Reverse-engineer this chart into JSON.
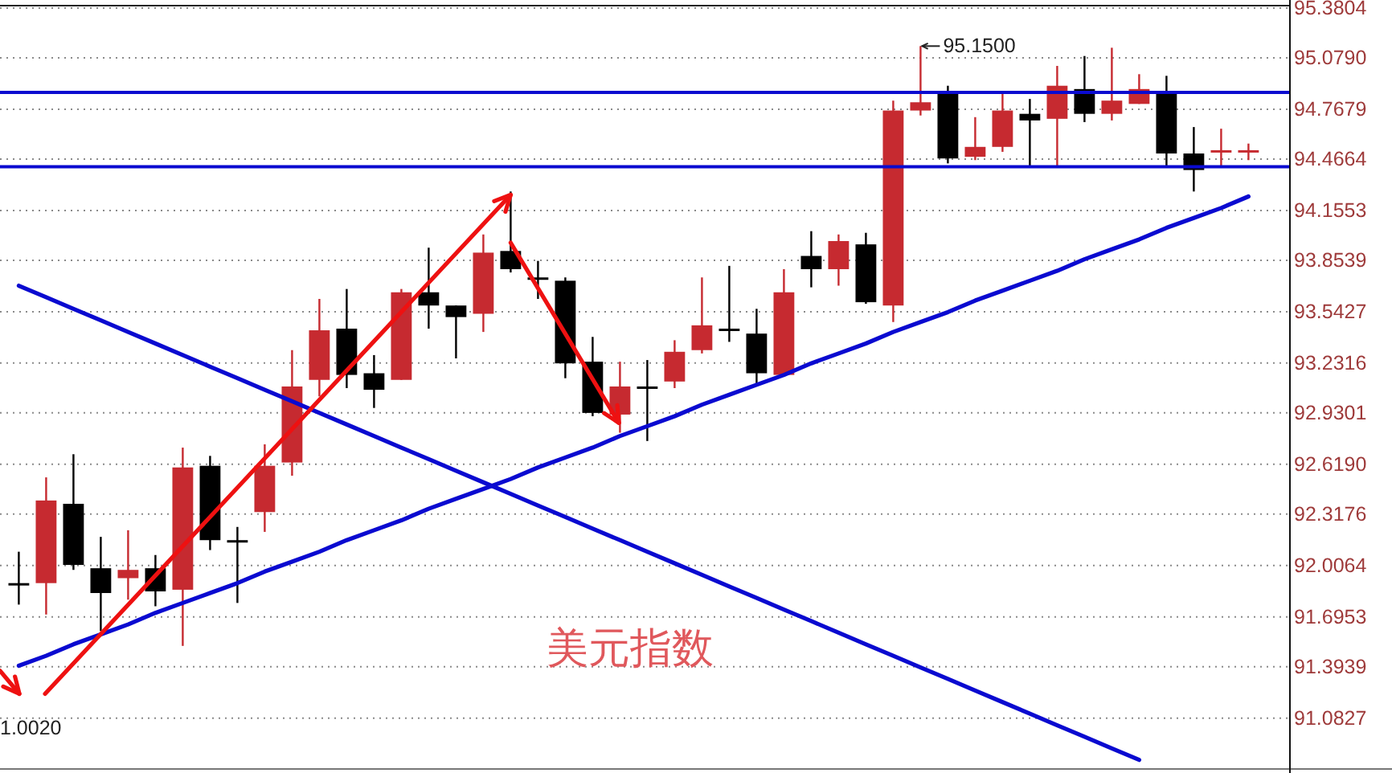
{
  "chart_data": {
    "type": "candlestick",
    "title": "美元指数",
    "categories": [
      null,
      null,
      null,
      null,
      null,
      null,
      null,
      null,
      null,
      null,
      null,
      null,
      null,
      null,
      null,
      null,
      null,
      null,
      null,
      null,
      null,
      null,
      null,
      null,
      null,
      null,
      null,
      null,
      null,
      null,
      null,
      null,
      null,
      null,
      null,
      null,
      null,
      null,
      null,
      null,
      null,
      null,
      null,
      null,
      null,
      null
    ],
    "ohlc": [
      [
        91.9,
        92.09,
        91.77,
        91.89
      ],
      [
        91.9,
        92.54,
        91.71,
        92.4
      ],
      [
        92.38,
        92.68,
        91.98,
        92.01
      ],
      [
        91.99,
        92.18,
        91.61,
        91.84
      ],
      [
        91.93,
        92.22,
        91.8,
        91.98
      ],
      [
        91.99,
        92.07,
        91.76,
        91.85
      ],
      [
        91.86,
        92.72,
        91.52,
        92.6
      ],
      [
        92.61,
        92.67,
        92.1,
        92.16
      ],
      [
        92.16,
        92.24,
        91.78,
        92.15
      ],
      [
        92.33,
        92.74,
        92.21,
        92.61
      ],
      [
        92.63,
        93.31,
        92.55,
        93.09
      ],
      [
        93.13,
        93.62,
        93.03,
        93.43
      ],
      [
        93.44,
        93.68,
        93.08,
        93.16
      ],
      [
        93.17,
        93.28,
        92.96,
        93.07
      ],
      [
        93.13,
        93.68,
        93.13,
        93.66
      ],
      [
        93.66,
        93.93,
        93.44,
        93.58
      ],
      [
        93.58,
        93.58,
        93.26,
        93.51
      ],
      [
        93.53,
        94.01,
        93.42,
        93.9
      ],
      [
        93.91,
        94.27,
        93.78,
        93.8
      ],
      [
        93.75,
        93.85,
        93.62,
        93.74
      ],
      [
        93.73,
        93.75,
        93.14,
        93.23
      ],
      [
        93.24,
        93.39,
        92.91,
        92.93
      ],
      [
        92.92,
        93.24,
        92.81,
        93.09
      ],
      [
        93.09,
        93.25,
        92.76,
        93.08
      ],
      [
        93.12,
        93.37,
        93.08,
        93.3
      ],
      [
        93.31,
        93.75,
        93.29,
        93.46
      ],
      [
        93.44,
        93.82,
        93.36,
        93.43
      ],
      [
        93.41,
        93.56,
        93.1,
        93.17
      ],
      [
        93.16,
        93.8,
        93.16,
        93.66
      ],
      [
        93.88,
        94.03,
        93.69,
        93.8
      ],
      [
        93.8,
        94.01,
        93.7,
        93.97
      ],
      [
        93.95,
        94.02,
        93.59,
        93.6
      ],
      [
        93.58,
        94.82,
        93.48,
        94.76
      ],
      [
        94.76,
        95.15,
        94.73,
        94.81
      ],
      [
        94.86,
        94.91,
        94.44,
        94.47
      ],
      [
        94.48,
        94.72,
        94.46,
        94.54
      ],
      [
        94.54,
        94.87,
        94.51,
        94.76
      ],
      [
        94.74,
        94.83,
        94.42,
        94.7
      ],
      [
        94.71,
        95.03,
        94.42,
        94.91
      ],
      [
        94.89,
        95.09,
        94.69,
        94.74
      ],
      [
        94.74,
        95.14,
        94.7,
        94.82
      ],
      [
        94.8,
        94.98,
        94.8,
        94.89
      ],
      [
        94.86,
        94.97,
        94.42,
        94.5
      ],
      [
        94.5,
        94.66,
        94.27,
        94.4
      ],
      [
        94.51,
        94.65,
        94.42,
        94.52
      ],
      [
        94.51,
        94.56,
        94.46,
        94.52
      ]
    ],
    "colors": [
      "#000000",
      "#c62a30",
      "#000000",
      "#000000",
      "#c62a30",
      "#000000",
      "#c62a30",
      "#000000",
      "#000000",
      "#c62a30",
      "#c62a30",
      "#c62a30",
      "#000000",
      "#000000",
      "#c62a30",
      "#000000",
      "#000000",
      "#c62a30",
      "#000000",
      "#000000",
      "#000000",
      "#000000",
      "#c62a30",
      "#000000",
      "#c62a30",
      "#c62a30",
      "#000000",
      "#000000",
      "#c62a30",
      "#000000",
      "#c62a30",
      "#000000",
      "#c62a30",
      "#c62a30",
      "#000000",
      "#c62a30",
      "#c62a30",
      "#000000",
      "#c62a30",
      "#000000",
      "#c62a30",
      "#c62a30",
      "#000000",
      "#000000",
      "#c62a30",
      "#c62a30"
    ],
    "series": [
      {
        "type": "line",
        "color": "#0a0ad0",
        "values": [
          91.4,
          91.46,
          91.53,
          91.59,
          91.65,
          91.72,
          91.78,
          91.84,
          91.9,
          91.97,
          92.03,
          92.09,
          92.16,
          92.22,
          92.28,
          92.35,
          92.41,
          92.47,
          92.53,
          92.6,
          92.66,
          92.72,
          92.79,
          92.85,
          92.91,
          92.98,
          93.04,
          93.1,
          93.16,
          93.23,
          93.29,
          93.35,
          93.42,
          93.48,
          93.54,
          93.61,
          93.67,
          93.73,
          93.79,
          93.86,
          93.92,
          93.98,
          94.05,
          94.11,
          94.17,
          94.24
        ]
      },
      {
        "type": "line",
        "color": "#0a0ad0",
        "values": [
          93.7,
          93.63,
          93.56,
          93.49,
          93.42,
          93.35,
          93.28,
          93.21,
          93.14,
          93.07,
          93.0,
          92.93,
          92.86,
          92.79,
          92.72,
          92.65,
          92.58,
          92.51,
          92.44,
          92.37,
          92.3,
          92.23,
          92.16,
          92.09,
          92.02,
          91.95,
          91.88,
          91.81,
          91.74,
          91.67,
          91.6,
          91.53,
          91.46,
          91.39,
          91.32,
          91.25,
          91.18,
          91.11,
          91.04,
          90.97,
          90.9,
          90.83,
          null,
          null,
          null,
          null
        ]
      }
    ],
    "ylim": [
      90.78,
      95.39
    ],
    "yticks": [
      95.3804,
      {
        "value": 95.079,
        "label": "95.0790"
      },
      94.7679,
      94.4664,
      94.1553,
      93.8539,
      93.5427,
      93.2316,
      92.9301,
      {
        "value": 92.619,
        "label": "92.6190"
      },
      92.3176,
      92.0064,
      91.6953,
      91.3939,
      91.0827
    ],
    "grid": "y",
    "tick_labels": "y",
    "ref_lines": [
      {
        "axis": "y",
        "value": 94.87,
        "color": "#0a0ad0"
      },
      {
        "axis": "y",
        "value": 94.42,
        "color": "#0a0ad0"
      }
    ],
    "annotations": [
      "1.0020",
      "95.1500"
    ]
  }
}
